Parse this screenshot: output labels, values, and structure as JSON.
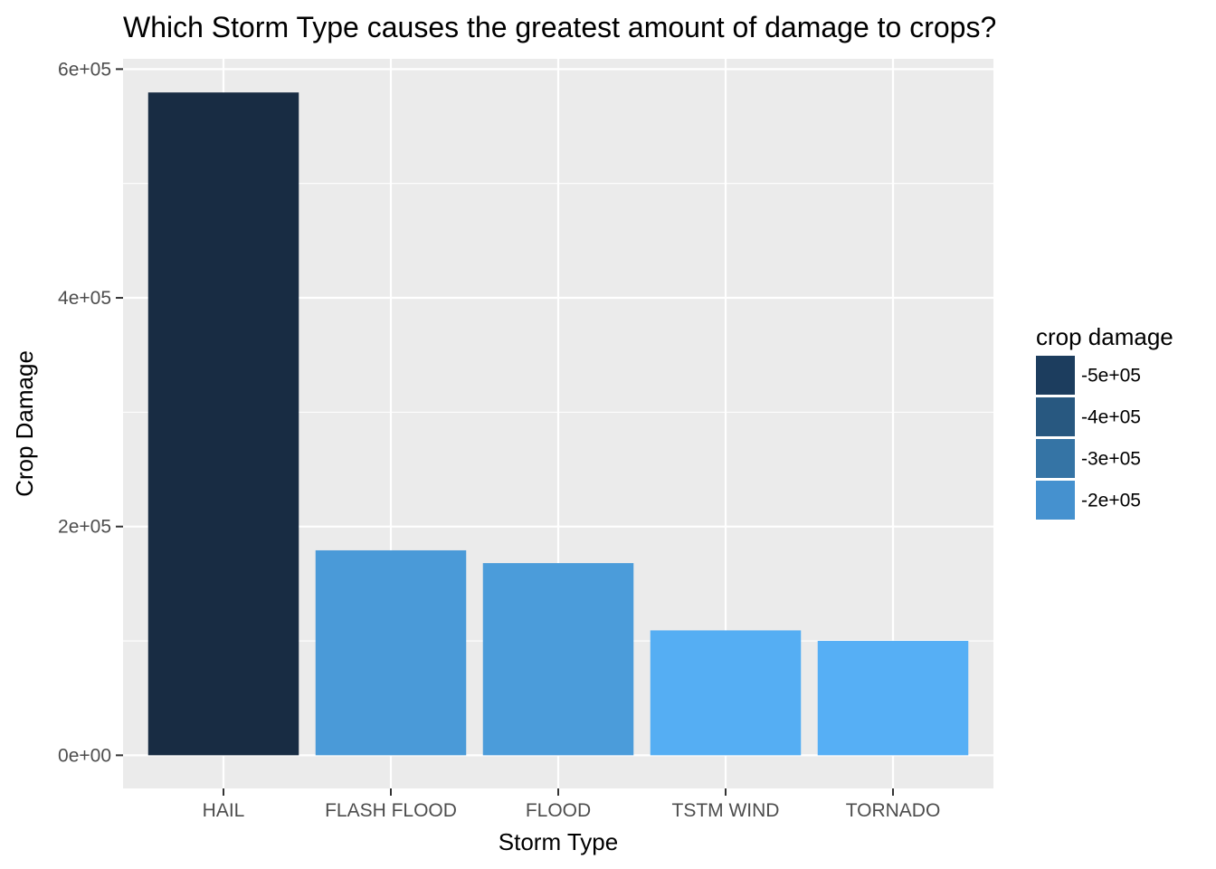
{
  "chart_data": {
    "type": "bar",
    "title": "Which Storm Type causes the greatest amount of damage to crops?",
    "xlabel": "Storm Type",
    "ylabel": "Crop Damage",
    "categories": [
      "HAIL",
      "FLASH FLOOD",
      "FLOOD",
      "TSTM WIND",
      "TORNADO"
    ],
    "values": [
      579596,
      179200,
      168038,
      109203,
      100019
    ],
    "ylim": [
      -29000,
      609000
    ],
    "yticks": [
      0,
      200000,
      400000,
      600000
    ],
    "ytick_labels": [
      "0e+00",
      "2e+05",
      "4e+05",
      "6e+05"
    ],
    "grid": true,
    "bar_colors": [
      "#182C43",
      "#4A9AD8",
      "#4B9CDA",
      "#55AEF3",
      "#56AFF5"
    ],
    "legend": {
      "title": "crop damage",
      "position": "right",
      "entries": [
        {
          "label": "-5e+05",
          "color": "#1C3D5E"
        },
        {
          "label": "-4e+05",
          "color": "#285880"
        },
        {
          "label": "-3e+05",
          "color": "#3574A5"
        },
        {
          "label": "-2e+05",
          "color": "#4591CF"
        }
      ]
    },
    "panel_background": "#EBEBEB",
    "grid_color": "#FFFFFF"
  }
}
